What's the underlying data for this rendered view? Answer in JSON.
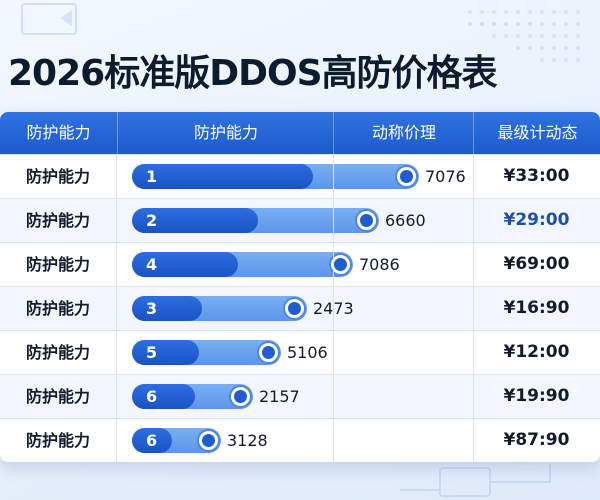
{
  "title": "2026标准版DDOS高防价格表",
  "table": {
    "headers": [
      "防护能力",
      "防护能力",
      "动称价理",
      "最级计动态"
    ],
    "rows": [
      {
        "label": "防护能力",
        "rank": "1",
        "value_text": "7076",
        "price": "¥33:00"
      },
      {
        "label": "防护能力",
        "rank": "2",
        "value_text": "6660",
        "price": "¥29:00"
      },
      {
        "label": "防护能力",
        "rank": "4",
        "value_text": "7086",
        "price": "¥69:00"
      },
      {
        "label": "防护能力",
        "rank": "3",
        "value_text": "2473",
        "price": "¥16:90"
      },
      {
        "label": "防护能力",
        "rank": "5",
        "value_text": "5106",
        "price": "¥12:00"
      },
      {
        "label": "防护能力",
        "rank": "6",
        "value_text": "2157",
        "price": "¥19:90"
      },
      {
        "label": "防护能力",
        "rank": "6",
        "value_text": "3128",
        "price": "¥87:90"
      }
    ]
  },
  "chart_data": {
    "type": "bar",
    "categories": [
      "1",
      "2",
      "4",
      "3",
      "5",
      "6",
      "6"
    ],
    "values": [
      7076,
      6660,
      7086,
      2473,
      5106,
      2157,
      3128
    ],
    "fill_fraction": [
      0.63,
      0.51,
      0.48,
      0.4,
      0.45,
      0.52,
      0.45
    ],
    "track_fraction": [
      1.0,
      0.86,
      0.77,
      0.61,
      0.52,
      0.42,
      0.31
    ]
  },
  "colors": {
    "header": "#1d5bcc",
    "bar_fill": "#1a53c4",
    "bar_track": "#6ea4ef",
    "accent_price": "#1d4fae"
  }
}
